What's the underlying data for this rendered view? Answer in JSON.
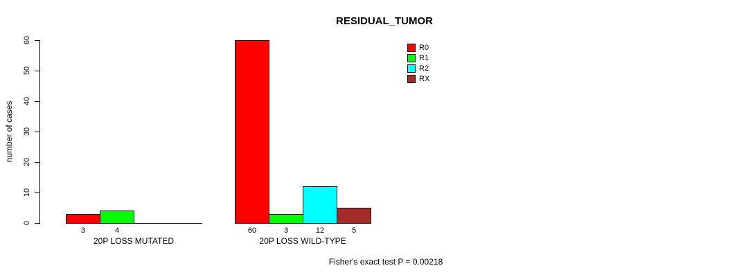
{
  "title": "RESIDUAL_TUMOR",
  "ylabel": "number of cases",
  "footer": "Fisher's exact test P = 0.00218",
  "y_ticks": [
    0,
    10,
    20,
    30,
    40,
    50,
    60
  ],
  "chart_data": {
    "type": "bar",
    "grouped": true,
    "title": "RESIDUAL_TUMOR",
    "xlabel": "",
    "ylabel": "number of cases",
    "ylim": [
      0,
      60
    ],
    "y_ticks": [
      0,
      10,
      20,
      30,
      40,
      50,
      60
    ],
    "grid": false,
    "legend_position": "top-right-inside",
    "categories": [
      "20P LOSS MUTATED",
      "20P LOSS WILD-TYPE"
    ],
    "series": [
      {
        "name": "R0",
        "color": "#ff0000",
        "values": [
          3,
          60
        ]
      },
      {
        "name": "R1",
        "color": "#00ff00",
        "values": [
          4,
          3
        ]
      },
      {
        "name": "R2",
        "color": "#00ffff",
        "values": [
          0,
          12
        ]
      },
      {
        "name": "RX",
        "color": "#a52a2a",
        "values": [
          0,
          5
        ]
      }
    ],
    "bar_value_labels_shown": [
      [
        3,
        4
      ],
      [
        60,
        3,
        12,
        5
      ]
    ],
    "zero_bars_unlabeled": true,
    "annotation": "Fisher's exact test P = 0.00218"
  }
}
